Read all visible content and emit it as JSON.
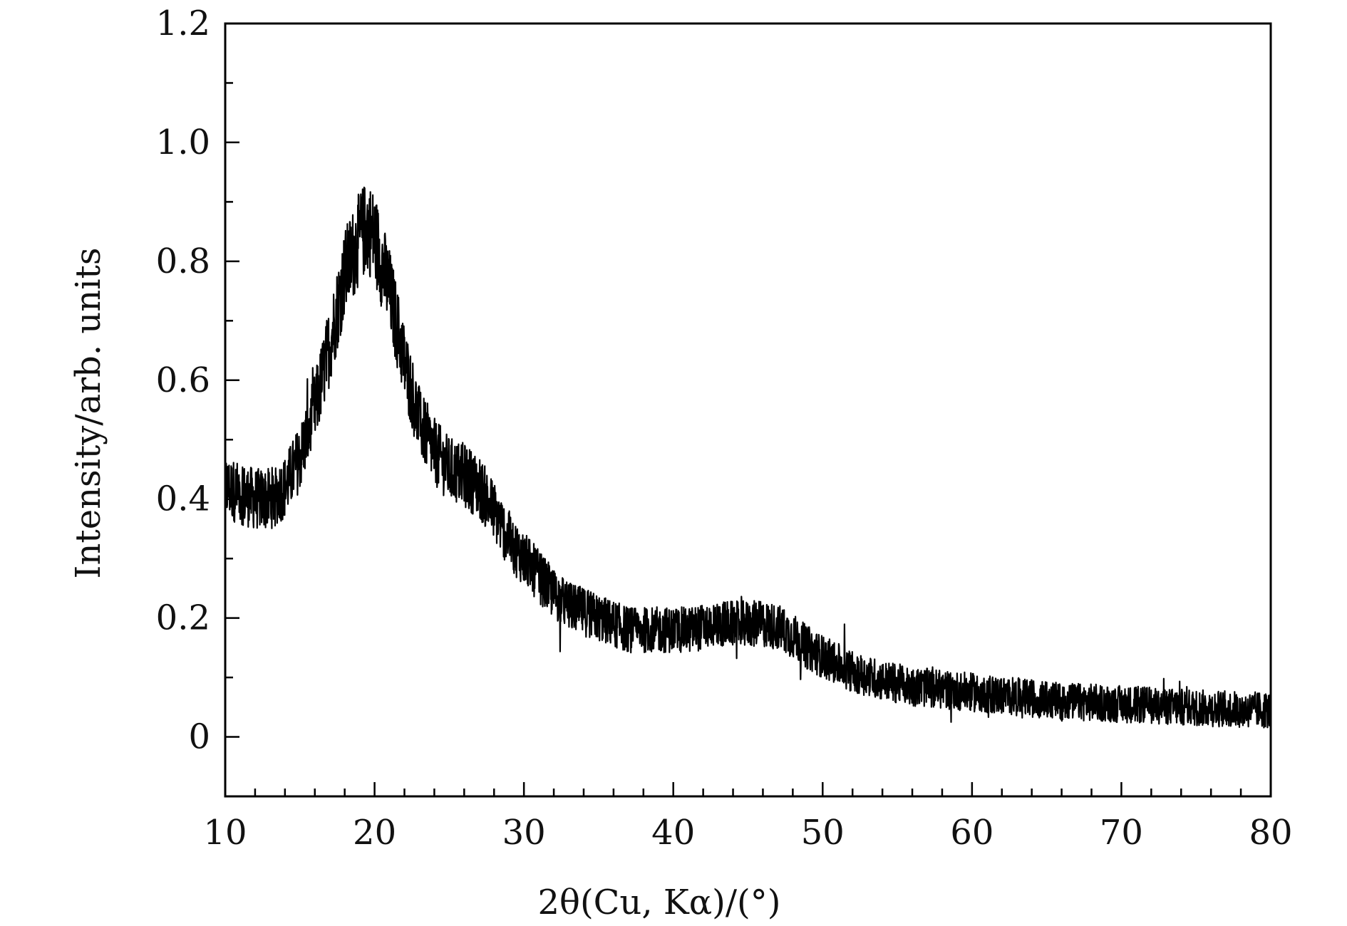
{
  "chart_data": {
    "type": "line",
    "title": "",
    "xlabel": "2θ(Cu, Kα)/(°)",
    "ylabel": "Intensity/arb. units",
    "xlim": [
      10,
      80
    ],
    "ylim": [
      -0.1,
      1.2
    ],
    "x_ticks": [
      "10",
      "20",
      "30",
      "40",
      "50",
      "60",
      "70",
      "80"
    ],
    "y_ticks": [
      "0",
      "0.2",
      "0.4",
      "0.6",
      "0.8",
      "1.0",
      "1.2"
    ],
    "grid": false,
    "legend": "none",
    "line_color": "#000000",
    "series": [
      {
        "x": [
          10,
          11,
          12,
          13,
          14,
          15,
          16,
          17,
          18,
          19,
          19.5,
          20,
          21,
          22,
          23,
          24,
          25,
          26,
          27,
          28,
          29,
          30,
          31,
          32,
          33,
          34,
          35,
          36,
          37,
          38,
          39,
          40,
          41,
          42,
          43,
          44,
          45,
          46,
          47,
          48,
          49,
          50,
          52,
          54,
          56,
          58,
          60,
          62,
          64,
          66,
          68,
          70,
          72,
          74,
          76,
          78,
          80
        ],
        "y": [
          0.42,
          0.41,
          0.4,
          0.4,
          0.42,
          0.47,
          0.55,
          0.66,
          0.78,
          0.84,
          0.86,
          0.84,
          0.75,
          0.63,
          0.53,
          0.48,
          0.45,
          0.44,
          0.42,
          0.38,
          0.33,
          0.3,
          0.27,
          0.24,
          0.22,
          0.21,
          0.2,
          0.19,
          0.18,
          0.18,
          0.18,
          0.18,
          0.18,
          0.185,
          0.19,
          0.19,
          0.19,
          0.19,
          0.185,
          0.17,
          0.15,
          0.135,
          0.11,
          0.095,
          0.085,
          0.08,
          0.075,
          0.07,
          0.065,
          0.06,
          0.058,
          0.055,
          0.053,
          0.05,
          0.048,
          0.046,
          0.045
        ]
      }
    ]
  }
}
